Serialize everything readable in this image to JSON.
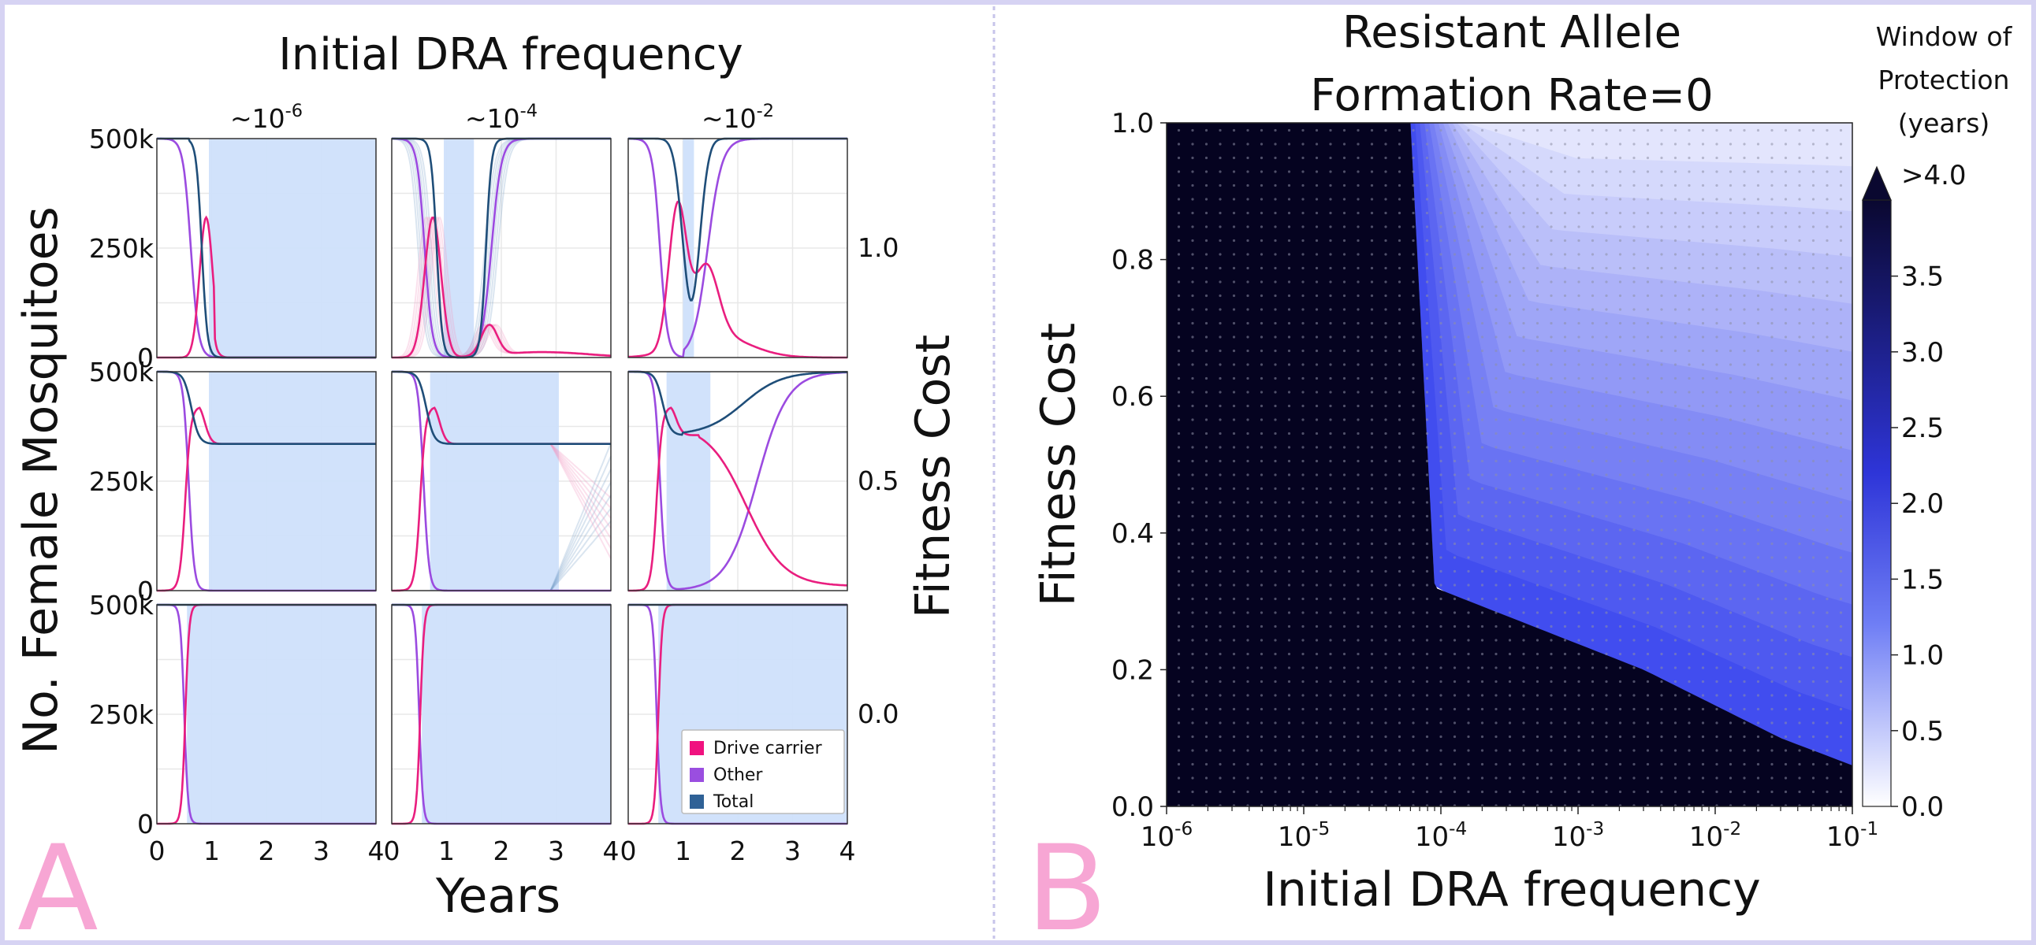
{
  "panel_letters": {
    "a": "A",
    "b": "B"
  },
  "panel_a": {
    "super_title": "Initial DRA frequency",
    "column_titles": [
      {
        "base": "~10",
        "exp": "-6"
      },
      {
        "base": "~10",
        "exp": "-4"
      },
      {
        "base": "~10",
        "exp": "-2"
      }
    ],
    "row_labels": [
      "1.0",
      "0.5",
      "0.0"
    ],
    "ylabel": "No. Female Mosquitoes",
    "xlabel": "Years",
    "right_label": "Fitness Cost",
    "yticks": [
      "500k",
      "250k",
      "0"
    ],
    "xticks": [
      "0",
      "1",
      "2",
      "3",
      "4"
    ],
    "legend": [
      {
        "label": "Drive carrier",
        "color": "#f0127f"
      },
      {
        "label": "Other",
        "color": "#9a4ee0"
      },
      {
        "label": "Total",
        "color": "#2f6196"
      }
    ],
    "colors": {
      "drive": "#e91e7f",
      "other": "#9b4be0",
      "total": "#1f4e79",
      "window": "#cfe0fb",
      "grid": "#e8e8e8"
    }
  },
  "panel_b": {
    "title_lines": [
      "Resistant Allele",
      "Formation Rate=0"
    ],
    "ylabel": "Fitness Cost",
    "xlabel": "Initial DRA frequency",
    "yticks": [
      "0.0",
      "0.2",
      "0.4",
      "0.6",
      "0.8",
      "1.0"
    ],
    "xticks": [
      {
        "base": "10",
        "exp": "-6"
      },
      {
        "base": "10",
        "exp": "-5"
      },
      {
        "base": "10",
        "exp": "-4"
      },
      {
        "base": "10",
        "exp": "-3"
      },
      {
        "base": "10",
        "exp": "-2"
      },
      {
        "base": "10",
        "exp": "-1"
      }
    ],
    "colorbar_title_lines": [
      "Window of",
      "Protection",
      "(years)"
    ],
    "colorbar_ticks": [
      "0.0",
      "0.5",
      "1.0",
      "1.5",
      "2.0",
      "2.5",
      "3.0",
      "3.5"
    ],
    "colorbar_extend_label": ">4.0",
    "colors": {
      "dark": "#050320",
      "blue": "#3340ee",
      "white": "#ffffff"
    }
  },
  "chart_data": [
    {
      "type": "line",
      "title": "Initial DRA frequency",
      "xlabel": "Years",
      "ylabel": "No. Female Mosquitoes",
      "xlim": [
        0,
        4
      ],
      "ylim": [
        0,
        500000
      ],
      "legend": "bottom-right",
      "grid": true,
      "panels": [
        {
          "fitness_cost": 1.0,
          "dra_frequency": "~10^-6",
          "window_years": [
            0.95,
            4.0
          ],
          "total_crash_year": 0.95,
          "drive_peak": 320000,
          "drive_peak_year": 0.9
        },
        {
          "fitness_cost": 1.0,
          "dra_frequency": "~10^-4",
          "window_years": [
            0.95,
            1.5
          ],
          "total_crash_year": 0.95,
          "total_recovery_year": 1.8,
          "drive_peak": 320000,
          "drive_peak_year": 0.75
        },
        {
          "fitness_cost": 1.0,
          "dra_frequency": "~10^-2",
          "window_years": [
            1.0,
            1.2
          ],
          "total_min": 130000,
          "total_min_year": 1.15,
          "drive_peak": 320000,
          "drive_peak_year": 0.9
        },
        {
          "fitness_cost": 0.5,
          "dra_frequency": "~10^-6",
          "window_years": [
            0.95,
            4.0
          ],
          "total_plateau": 335000,
          "drive_peak": 420000,
          "drive_peak_year": 0.65
        },
        {
          "fitness_cost": 0.5,
          "dra_frequency": "~10^-4",
          "window_years": [
            0.7,
            3.05
          ],
          "total_plateau": 335000,
          "drive_peak": 420000,
          "drive_peak_year": 0.65
        },
        {
          "fitness_cost": 0.5,
          "dra_frequency": "~10^-2",
          "window_years": [
            0.7,
            1.5
          ],
          "total_min": 355000,
          "total_min_year": 1.0,
          "drive_peak": 420000,
          "drive_peak_year": 0.65
        },
        {
          "fitness_cost": 0.0,
          "dra_frequency": "~10^-6",
          "window_years": [
            0.55,
            4.0
          ],
          "replacement_year": 0.55
        },
        {
          "fitness_cost": 0.0,
          "dra_frequency": "~10^-4",
          "window_years": [
            0.55,
            4.0
          ],
          "replacement_year": 0.55
        },
        {
          "fitness_cost": 0.0,
          "dra_frequency": "~10^-2",
          "window_years": [
            0.55,
            4.0
          ],
          "replacement_year": 0.55
        }
      ],
      "series": [
        {
          "name": "Drive carrier"
        },
        {
          "name": "Other"
        },
        {
          "name": "Total"
        }
      ]
    },
    {
      "type": "heatmap",
      "title": "Resistant Allele Formation Rate=0",
      "xlabel": "Initial DRA frequency",
      "ylabel": "Fitness Cost",
      "xscale": "log",
      "xlim": [
        1e-06,
        0.1
      ],
      "ylim": [
        0,
        1
      ],
      "colorbar": {
        "label": "Window of Protection (years)",
        "range": [
          0,
          4
        ],
        "extend": ">4.0"
      },
      "dark_region_boundary": [
        {
          "fitness_cost": 1.0,
          "dra_frequency": 6e-05
        },
        {
          "fitness_cost": 0.32,
          "dra_frequency": 9e-05
        },
        {
          "fitness_cost": 0.2,
          "dra_frequency": 0.003
        },
        {
          "fitness_cost": 0.1,
          "dra_frequency": 0.03
        },
        {
          "fitness_cost": 0.06,
          "dra_frequency": 0.1
        }
      ]
    }
  ]
}
